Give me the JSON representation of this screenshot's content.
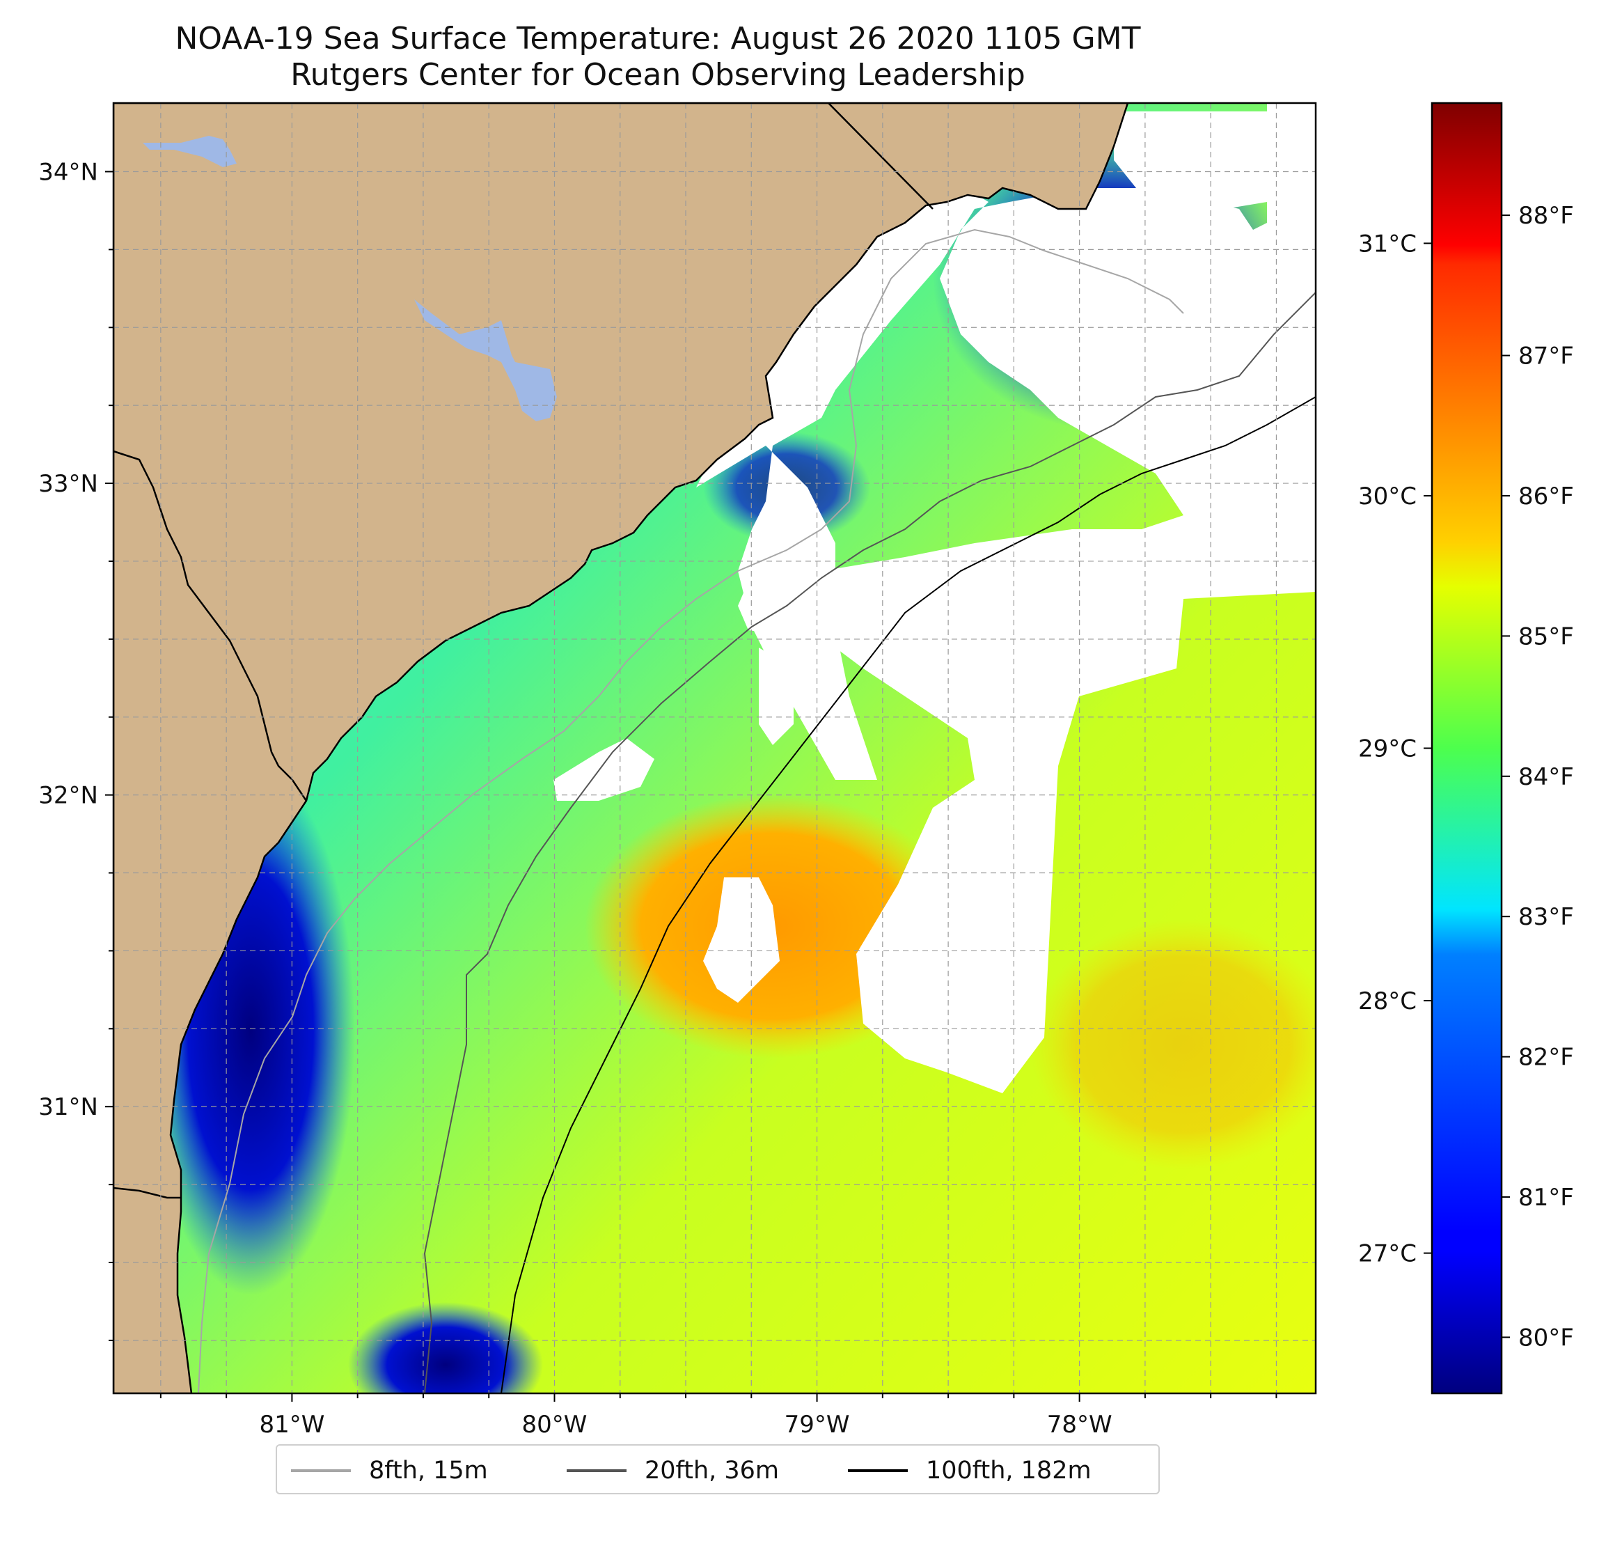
{
  "title": {
    "line1": "NOAA-19 Sea Surface Temperature: August 26 2020 1105 GMT",
    "line2": "Rutgers Center for Ocean Observing Leadership"
  },
  "map": {
    "lon_range": [
      -81.68,
      -77.1
    ],
    "lat_range": [
      30.08,
      34.22
    ],
    "lon_ticks": [
      {
        "value": -81,
        "label": "81°W"
      },
      {
        "value": -80,
        "label": "80°W"
      },
      {
        "value": -79,
        "label": "79°W"
      },
      {
        "value": -78,
        "label": "78°W"
      }
    ],
    "lat_ticks": [
      {
        "value": 34,
        "label": "34°N"
      },
      {
        "value": 33,
        "label": "33°N"
      },
      {
        "value": 32,
        "label": "32°N"
      },
      {
        "value": 31,
        "label": "31°N"
      }
    ],
    "gridlines": "dashed",
    "land_color": "#d2b48c",
    "lake_color": "#9fb8e6",
    "cloud_mask_color": "#ffffff"
  },
  "colorbar": {
    "colormap": "jet",
    "range_f": [
      79.6,
      88.8
    ],
    "fahrenheit_ticks": [
      {
        "value": 88,
        "label": "88°F"
      },
      {
        "value": 87,
        "label": "87°F"
      },
      {
        "value": 86,
        "label": "86°F"
      },
      {
        "value": 85,
        "label": "85°F"
      },
      {
        "value": 84,
        "label": "84°F"
      },
      {
        "value": 83,
        "label": "83°F"
      },
      {
        "value": 82,
        "label": "82°F"
      },
      {
        "value": 81,
        "label": "81°F"
      },
      {
        "value": 80,
        "label": "80°F"
      }
    ],
    "celsius_ticks": [
      {
        "value": 31,
        "label": "31°C"
      },
      {
        "value": 30,
        "label": "30°C"
      },
      {
        "value": 29,
        "label": "29°C"
      },
      {
        "value": 28,
        "label": "28°C"
      },
      {
        "value": 27,
        "label": "27°C"
      }
    ]
  },
  "legend": {
    "items": [
      {
        "label": "8fth, 15m",
        "color": "#a6a6a6"
      },
      {
        "label": "20fth, 36m",
        "color": "#555555"
      },
      {
        "label": "100fth, 182m",
        "color": "#000000"
      }
    ]
  }
}
